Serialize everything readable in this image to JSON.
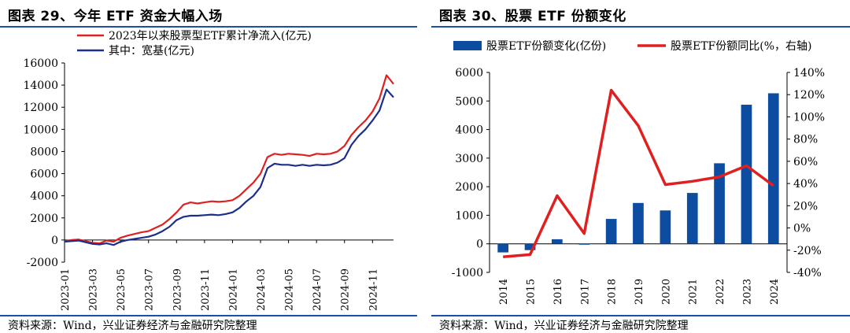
{
  "left_panel": {
    "title": "图表 29、今年 ETF 资金大幅入场",
    "source": "资料来源：Wind，兴业证券经济与金融研究院整理"
  },
  "right_panel": {
    "title": "图表 30、股票 ETF 份额变化",
    "source": "资料来源：Wind，兴业证券经济与金融研究院整理"
  },
  "chart_data": [
    {
      "type": "line",
      "title": "",
      "ylim": [
        -2000,
        16000
      ],
      "y_ticks": [
        -2000,
        0,
        2000,
        4000,
        6000,
        8000,
        10000,
        12000,
        14000,
        16000
      ],
      "y_tick_labels": [
        "-2000",
        "0",
        "2000",
        "4000",
        "6000",
        "8000",
        "10000",
        "12000",
        "14000",
        "16000"
      ],
      "x_tick_labels": [
        "2023-01",
        "2023-03",
        "2023-05",
        "2023-07",
        "2023-09",
        "2023-11",
        "2024-01",
        "2024-03",
        "2024-05",
        "2024-07",
        "2024-09",
        "2024-11"
      ],
      "legend_position": "top",
      "grid": false,
      "x": [
        0,
        0.5,
        1,
        1.5,
        2,
        2.5,
        3,
        3.5,
        4,
        4.5,
        5,
        5.5,
        6,
        6.5,
        7,
        7.5,
        8,
        8.5,
        9,
        9.5,
        10,
        10.5,
        11,
        11.5,
        12,
        12.5,
        13,
        13.5,
        14,
        14.5,
        15,
        15.5,
        16,
        16.5,
        17,
        17.5,
        18,
        18.5,
        19,
        19.5,
        20,
        20.5,
        21,
        21.5,
        22,
        22.5,
        23,
        23.5
      ],
      "series": [
        {
          "name": "2023年以来股票型ETF累计净流入(亿元)",
          "color": "#e02020",
          "values": [
            -100,
            0,
            50,
            -100,
            -250,
            -300,
            -50,
            -150,
            200,
            400,
            550,
            700,
            800,
            1100,
            1400,
            1900,
            2500,
            3200,
            3400,
            3300,
            3400,
            3500,
            3450,
            3500,
            3600,
            4000,
            4600,
            5200,
            6000,
            7500,
            7800,
            7700,
            7800,
            7750,
            7700,
            7600,
            7800,
            7750,
            7800,
            8000,
            8500,
            9500,
            10200,
            10800,
            11600,
            12800,
            14900,
            14100
          ]
        },
        {
          "name": "其中：宽基(亿元)",
          "color": "#1b2f8a",
          "values": [
            -150,
            -100,
            -50,
            -200,
            -350,
            -400,
            -300,
            -450,
            -150,
            0,
            100,
            200,
            300,
            500,
            800,
            1200,
            1800,
            2100,
            2200,
            2200,
            2250,
            2300,
            2250,
            2350,
            2500,
            2900,
            3500,
            4000,
            4800,
            6500,
            6900,
            6800,
            6800,
            6700,
            6800,
            6700,
            6800,
            6750,
            6800,
            7000,
            7400,
            8600,
            9400,
            10000,
            10800,
            11700,
            13600,
            12900
          ]
        }
      ]
    },
    {
      "type": "bar",
      "title": "",
      "categories": [
        "2014",
        "2015",
        "2016",
        "2017",
        "2018",
        "2019",
        "2020",
        "2021",
        "2022",
        "2023",
        "2024"
      ],
      "ylim": [
        -1000,
        6000
      ],
      "y_ticks": [
        -1000,
        0,
        1000,
        2000,
        3000,
        4000,
        5000,
        6000
      ],
      "y_tick_labels": [
        "-1000",
        "0",
        "1000",
        "2000",
        "3000",
        "4000",
        "5000",
        "6000"
      ],
      "y2lim": [
        -40,
        140
      ],
      "y2_ticks": [
        -40,
        -20,
        0,
        20,
        40,
        60,
        80,
        100,
        120,
        140
      ],
      "y2_tick_labels": [
        "-40%",
        "-20%",
        "0%",
        "20%",
        "40%",
        "60%",
        "80%",
        "100%",
        "120%",
        "140%"
      ],
      "legend_position": "top",
      "grid": false,
      "series": [
        {
          "name": "股票ETF份额变化(亿份)",
          "type": "bar",
          "color": "#0c4da2",
          "axis": "left",
          "values": [
            -300,
            -220,
            160,
            -30,
            870,
            1430,
            1170,
            1780,
            2820,
            4870,
            5270
          ]
        },
        {
          "name": "股票ETF份额同比(%，右轴)",
          "type": "line",
          "color": "#e02020",
          "axis": "right",
          "values": [
            -26,
            -24,
            29,
            -5,
            124,
            92,
            39,
            42,
            46,
            56,
            38
          ]
        }
      ]
    }
  ]
}
